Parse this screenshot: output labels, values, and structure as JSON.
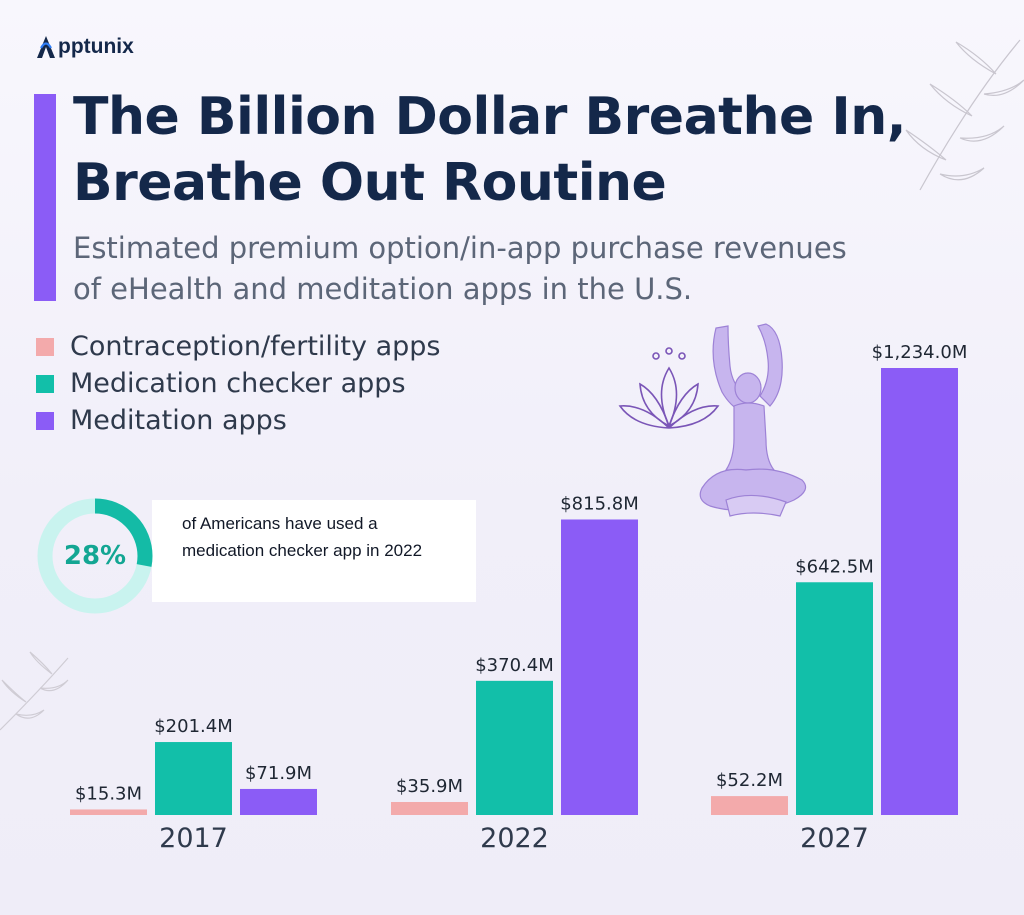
{
  "brand": {
    "logo_text": "pptunix",
    "logo_letter": "A"
  },
  "header": {
    "title_line1": "The Billion Dollar Breathe In,",
    "title_line2": "Breathe Out Routine",
    "subtitle_line1": "Estimated premium option/in-app purchase revenues",
    "subtitle_line2": "of eHealth and meditation apps in the U.S."
  },
  "stat": {
    "percent_label": "28%",
    "percent_value": 28,
    "text": "of Americans have used a medication checker app in 2022"
  },
  "colors": {
    "contraception": "#f3aaab",
    "medication": "#12bfa9",
    "meditation": "#8b5cf6",
    "accent": "#8b5cf6",
    "title": "#14284a",
    "ring_track": "#c9f3ef",
    "ring_fill": "#14bba6"
  },
  "chart_data": {
    "type": "bar",
    "title": "The Billion Dollar Breathe In, Breathe Out Routine",
    "subtitle": "Estimated premium option/in-app purchase revenues of eHealth and meditation apps in the U.S.",
    "categories": [
      "2017",
      "2022",
      "2027"
    ],
    "series": [
      {
        "name": "Contraception/fertility apps",
        "values": [
          15.3,
          35.9,
          52.2
        ],
        "labels": [
          "$15.3M",
          "$35.9M",
          "$52.2M"
        ],
        "color": "#f3aaab"
      },
      {
        "name": "Medication checker apps",
        "values": [
          201.4,
          370.4,
          642.5
        ],
        "labels": [
          "$201.4M",
          "$370.4M",
          "$642.5M"
        ],
        "color": "#12bfa9"
      },
      {
        "name": "Meditation apps",
        "values": [
          71.9,
          815.8,
          1234.0
        ],
        "labels": [
          "$71.9M",
          "$815.8M",
          "$1,234.0M"
        ],
        "color": "#8b5cf6"
      }
    ],
    "unit": "$M",
    "ylim": [
      0,
      1234
    ],
    "grid": false,
    "legend": "top-left"
  }
}
